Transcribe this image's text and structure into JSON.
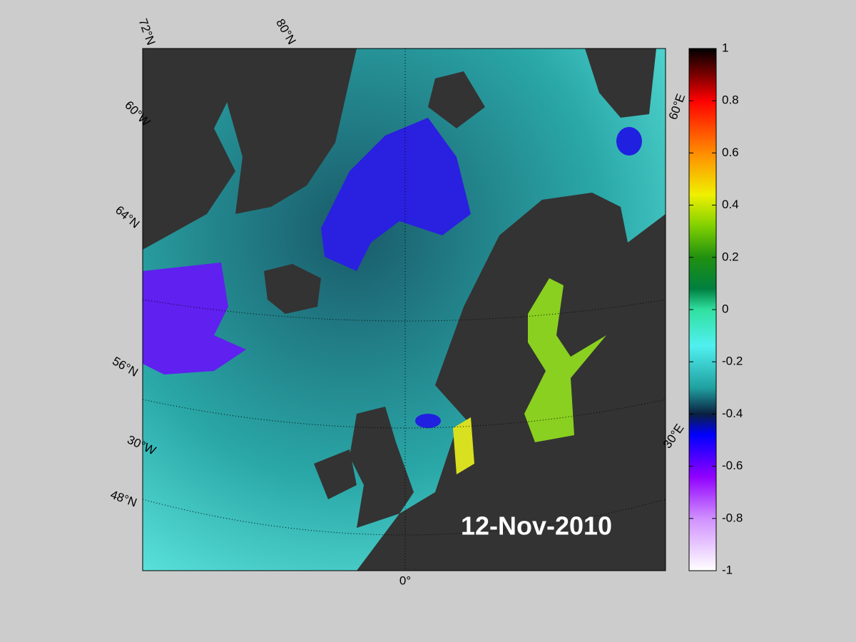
{
  "map": {
    "date": "12-Nov-2010",
    "labels": [
      "72°N",
      "80°N",
      "60°W",
      "64°N",
      "56°N",
      "30°W",
      "48°N",
      "0°",
      "60°E",
      "30°E"
    ]
  },
  "colorbar": {
    "lim": [
      -1,
      1
    ],
    "ticks": [
      1,
      0.8,
      0.6,
      0.4,
      0.2,
      0,
      -0.2,
      -0.4,
      -0.6,
      -0.8,
      -1
    ]
  }
}
